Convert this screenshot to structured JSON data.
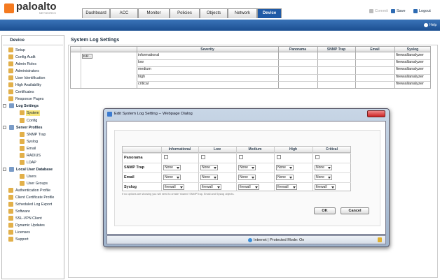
{
  "header": {
    "logo": "paloalto",
    "logo_sub": "NETWORKS",
    "tabs": [
      {
        "label": "Dashboard"
      },
      {
        "label": "ACC"
      },
      {
        "label": "Monitor"
      },
      {
        "label": "Policies"
      },
      {
        "label": "Objects"
      },
      {
        "label": "Network"
      },
      {
        "label": "Device",
        "active": true
      }
    ],
    "actions": [
      {
        "label": "Commit",
        "disabled": true
      },
      {
        "label": "Save"
      },
      {
        "label": "Logout"
      }
    ],
    "help": "Help"
  },
  "sidebar": {
    "title": "Device",
    "items": [
      {
        "label": "Setup",
        "level": 0
      },
      {
        "label": "Config Audit",
        "level": 0
      },
      {
        "label": "Admin Roles",
        "level": 0
      },
      {
        "label": "Administrators",
        "level": 0
      },
      {
        "label": "User Identification",
        "level": 0
      },
      {
        "label": "High Availability",
        "level": 0
      },
      {
        "label": "Certificates",
        "level": 0
      },
      {
        "label": "Response Pages",
        "level": 0
      },
      {
        "label": "Log Settings",
        "level": 0,
        "bold": true
      },
      {
        "label": "System",
        "level": 1,
        "selected": true
      },
      {
        "label": "Config",
        "level": 1
      },
      {
        "label": "Server Profiles",
        "level": 0,
        "bold": true
      },
      {
        "label": "SNMP Trap",
        "level": 1
      },
      {
        "label": "Syslog",
        "level": 1
      },
      {
        "label": "Email",
        "level": 1
      },
      {
        "label": "RADIUS",
        "level": 1
      },
      {
        "label": "LDAP",
        "level": 1
      },
      {
        "label": "Local User Database",
        "level": 0,
        "bold": true
      },
      {
        "label": "Users",
        "level": 1
      },
      {
        "label": "User Groups",
        "level": 1
      },
      {
        "label": "Authentication Profile",
        "level": 0
      },
      {
        "label": "Client Certificate Profile",
        "level": 0
      },
      {
        "label": "Scheduled Log Export",
        "level": 0
      },
      {
        "label": "Software",
        "level": 0
      },
      {
        "label": "SSL-VPN Client",
        "level": 0
      },
      {
        "label": "Dynamic Updates",
        "level": 0
      },
      {
        "label": "Licenses",
        "level": 0
      },
      {
        "label": "Support",
        "level": 0
      }
    ]
  },
  "main": {
    "title": "System Log Settings",
    "button": "Edit...",
    "headers": [
      "Severity",
      "Panorama",
      "SNMP Trap",
      "Email",
      "Syslog"
    ],
    "rows": [
      {
        "severity": "informational",
        "syslog": "firewallanalyzer"
      },
      {
        "severity": "low",
        "syslog": "firewallanalyzer"
      },
      {
        "severity": "medium",
        "syslog": "firewallanalyzer"
      },
      {
        "severity": "high",
        "syslog": "firewallanalyzer"
      },
      {
        "severity": "critical",
        "syslog": "firewallanalyzer"
      }
    ]
  },
  "dialog": {
    "title": "Edit System Log Setting -- Webpage Dialog",
    "columns": [
      "Informational",
      "Low",
      "Medium",
      "High",
      "Critical"
    ],
    "rows": [
      {
        "label": "Panorama",
        "control": "checkbox"
      },
      {
        "label": "SNMP Trap",
        "control": "select",
        "values": [
          "None",
          "None",
          "None",
          "None",
          "None"
        ]
      },
      {
        "label": "Email",
        "control": "select",
        "values": [
          "None",
          "None",
          "None",
          "None",
          "None"
        ]
      },
      {
        "label": "Syslog",
        "control": "select",
        "values": [
          "firewall",
          "firewall",
          "firewall",
          "firewall",
          "firewall"
        ]
      }
    ],
    "note": "If no options are showing you will need to create 'shared' SNMPTrap, Email and Syslog objects.",
    "buttons": [
      "OK",
      "Cancel"
    ],
    "status": "Internet | Protected Mode: On"
  }
}
